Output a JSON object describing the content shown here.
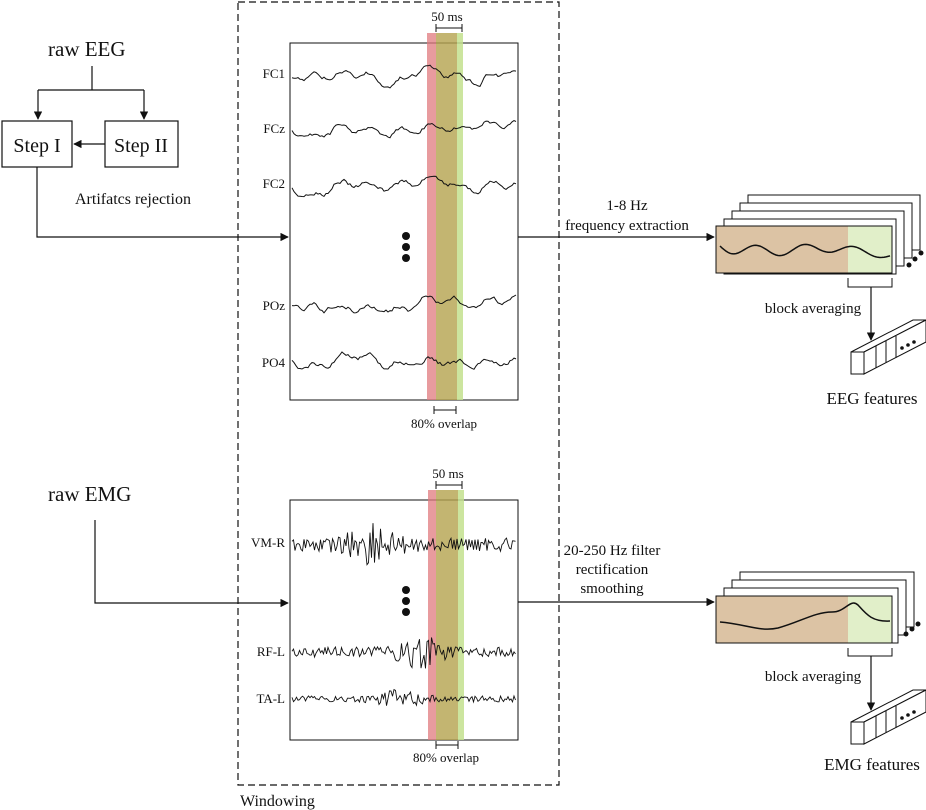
{
  "eeg_input": {
    "raw_label": "raw EEG",
    "step1": "Step I",
    "step2": "Step II",
    "artifacts_label": "Artifatcs rejection"
  },
  "eeg_panel": {
    "window_label": "50 ms",
    "overlap_label": "80% overlap",
    "channels": [
      "FC1",
      "FCz",
      "FC2",
      "POz",
      "PO4"
    ]
  },
  "emg_input": {
    "raw_label": "raw EMG"
  },
  "emg_panel": {
    "window_label": "50 ms",
    "overlap_label": "80% overlap",
    "channels": [
      "VM-R",
      "RF-L",
      "TA-L"
    ]
  },
  "windowing_label": "Windowing",
  "eeg_processing": {
    "extraction_line1": "1-8 Hz",
    "extraction_line2": "frequency extraction",
    "block_label": "block averaging",
    "features_label": "EEG features"
  },
  "emg_processing": {
    "filter_line1": "20-250 Hz filter",
    "filter_line2": "rectification",
    "filter_line3": "smoothing",
    "block_label": "block averaging",
    "features_label": "EMG features"
  },
  "colors": {
    "window_red": "#e07a7e",
    "window_olive": "#b4a34e",
    "window_green": "#c3e08e",
    "block_tan": "#dcc3a4",
    "block_green": "#e1efc9"
  }
}
